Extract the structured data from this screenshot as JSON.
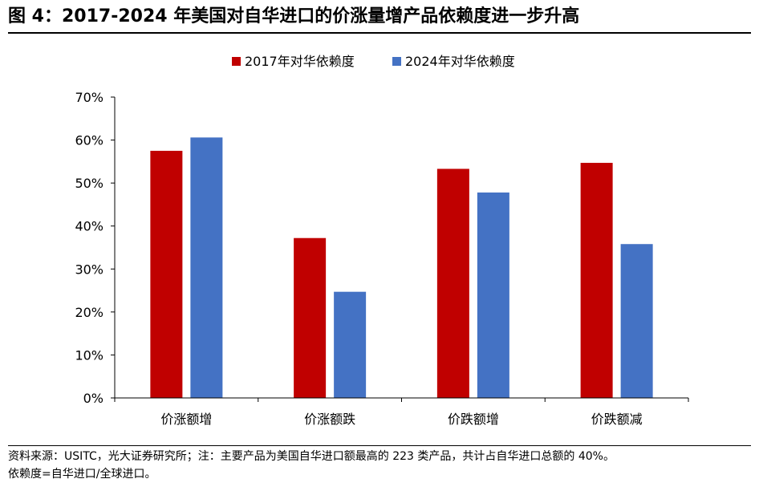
{
  "page": {
    "title": "图 4：2017-2024 年美国对自华进口的价涨量增产品依赖度进一步升高",
    "footnote_lines": [
      "资料来源：USITC，光大证券研究所；注：主要产品为美国自华进口额最高的 223 类产品，共计占自华进口总额的 40%。",
      "依赖度=自华进口/全球进口。"
    ]
  },
  "chart_data": {
    "type": "bar",
    "title": "",
    "xlabel": "",
    "ylabel": "",
    "categories": [
      "价涨额增",
      "价涨额跌",
      "价跌额增",
      "价跌额减"
    ],
    "series": [
      {
        "name": "2017年对华依赖度",
        "values": [
          57.5,
          37.2,
          53.3,
          54.7
        ],
        "color": "#C00000"
      },
      {
        "name": "2024年对华依赖度",
        "values": [
          60.6,
          24.7,
          47.8,
          35.8
        ],
        "color": "#4472C4"
      }
    ],
    "ylim": [
      0,
      70
    ],
    "yticks": [
      0,
      10,
      20,
      30,
      40,
      50,
      60,
      70
    ],
    "ytick_format": "%",
    "grid": false,
    "legend": "top-center"
  }
}
